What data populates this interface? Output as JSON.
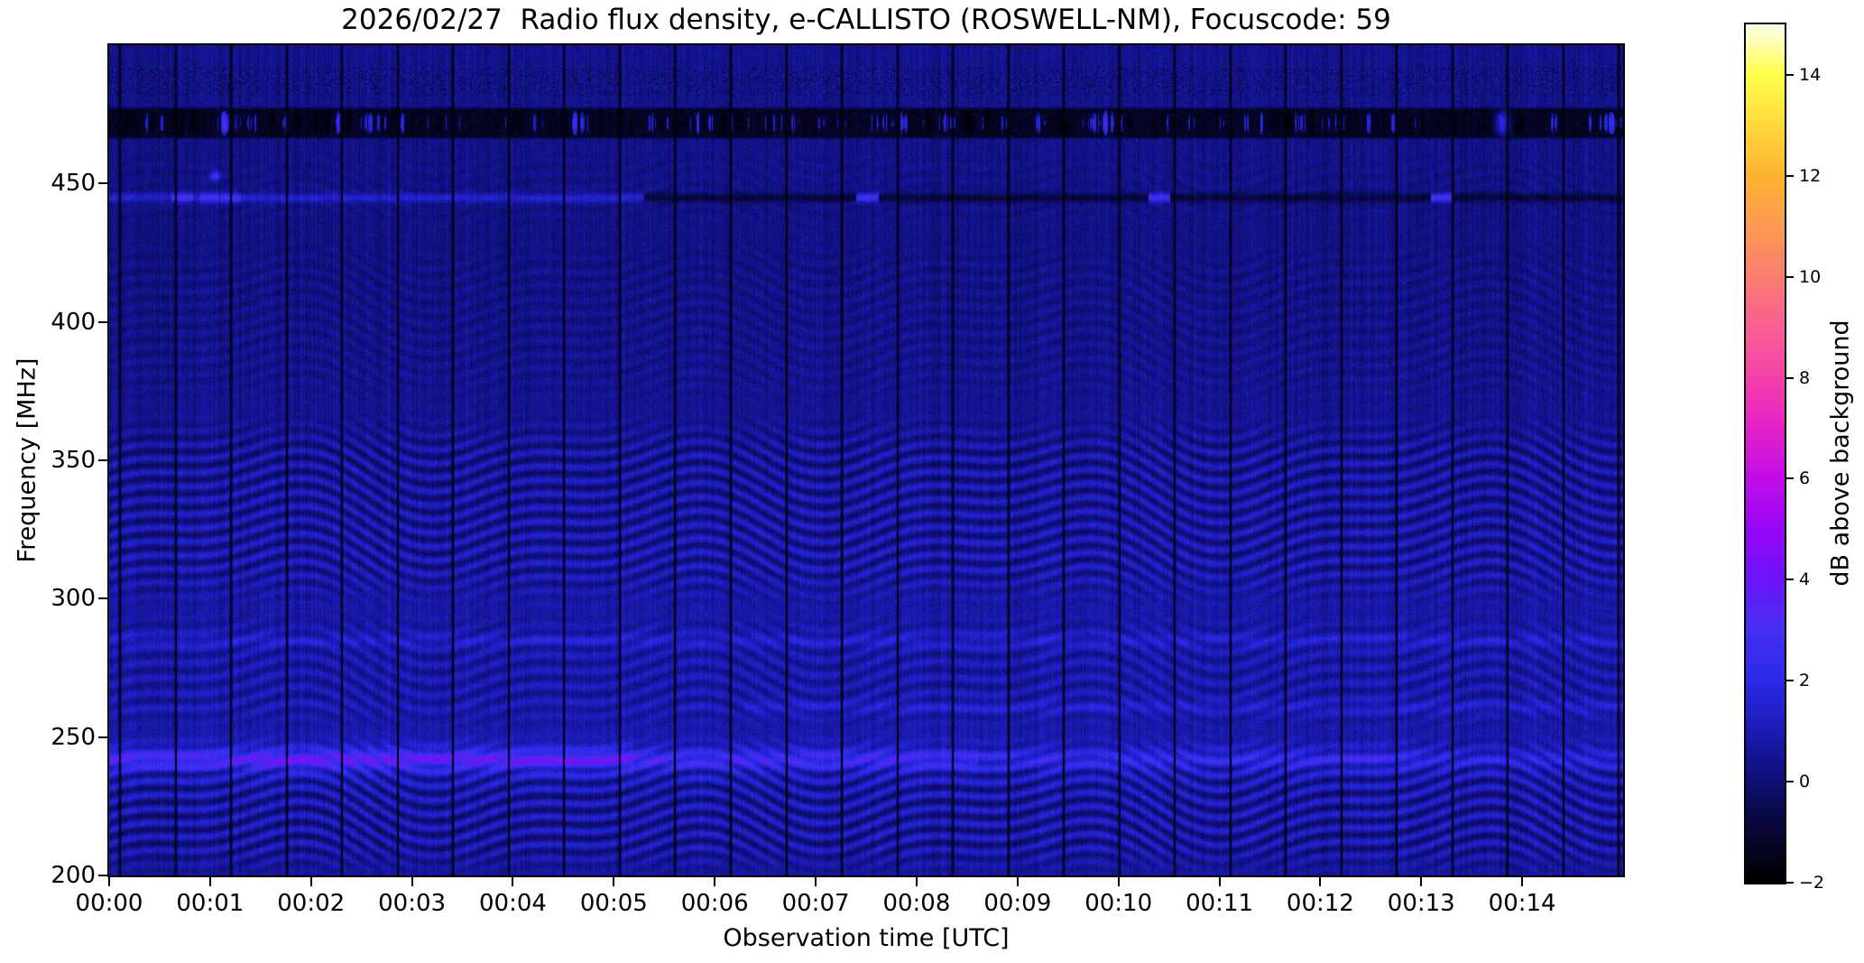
{
  "chart_data": {
    "type": "heatmap",
    "title": "2026/02/27  Radio flux density, e-CALLISTO (ROSWELL-NM), Focuscode: 59",
    "xlabel": "Observation time [UTC]",
    "ylabel": "Frequency [MHz]",
    "x_range_minutes": [
      0,
      15
    ],
    "y_range_mhz": [
      200,
      500
    ],
    "x_ticks": [
      {
        "minute": 0,
        "label": "00:00"
      },
      {
        "minute": 1,
        "label": "00:01"
      },
      {
        "minute": 2,
        "label": "00:02"
      },
      {
        "minute": 3,
        "label": "00:03"
      },
      {
        "minute": 4,
        "label": "00:04"
      },
      {
        "minute": 5,
        "label": "00:05"
      },
      {
        "minute": 6,
        "label": "00:06"
      },
      {
        "minute": 7,
        "label": "00:07"
      },
      {
        "minute": 8,
        "label": "00:08"
      },
      {
        "minute": 9,
        "label": "00:09"
      },
      {
        "minute": 10,
        "label": "00:10"
      },
      {
        "minute": 11,
        "label": "00:11"
      },
      {
        "minute": 12,
        "label": "00:12"
      },
      {
        "minute": 13,
        "label": "00:13"
      },
      {
        "minute": 14,
        "label": "00:14"
      }
    ],
    "y_ticks_mhz": [
      450,
      400,
      350,
      300,
      250,
      200
    ],
    "colorbar": {
      "label": "dB above background",
      "range_db": [
        -2,
        15
      ],
      "colormap": "gnuplot2",
      "ticks": [
        {
          "db": 14,
          "label": "14"
        },
        {
          "db": 12,
          "label": "12"
        },
        {
          "db": 10,
          "label": "10"
        },
        {
          "db": 8,
          "label": "8"
        },
        {
          "db": 6,
          "label": "6"
        },
        {
          "db": 4,
          "label": "4"
        },
        {
          "db": 2,
          "label": "2"
        },
        {
          "db": 0,
          "label": "0"
        },
        {
          "db": -2,
          "label": "−2"
        }
      ],
      "stops": [
        {
          "db": 15,
          "color": "#fffceb"
        },
        {
          "db": 14,
          "color": "#ffff4a"
        },
        {
          "db": 13,
          "color": "#ffd83c"
        },
        {
          "db": 12,
          "color": "#fcb232"
        },
        {
          "db": 11,
          "color": "#fb9a52"
        },
        {
          "db": 10,
          "color": "#fa7e6e"
        },
        {
          "db": 9,
          "color": "#f85f94"
        },
        {
          "db": 8,
          "color": "#f440a8"
        },
        {
          "db": 7,
          "color": "#e122c8"
        },
        {
          "db": 6,
          "color": "#c20ce8"
        },
        {
          "db": 5,
          "color": "#9706f6"
        },
        {
          "db": 4,
          "color": "#6c14fa"
        },
        {
          "db": 3,
          "color": "#4530f2"
        },
        {
          "db": 2,
          "color": "#2a2ae8"
        },
        {
          "db": 1,
          "color": "#1b1bb4"
        },
        {
          "db": 0,
          "color": "#0e0e72"
        },
        {
          "db": -1,
          "color": "#070733"
        },
        {
          "db": -2,
          "color": "#000000"
        }
      ]
    },
    "features": [
      {
        "type": "noise_floor",
        "mean_db": 0.45,
        "noise_db": 0.62
      },
      {
        "type": "time_gaps",
        "first_s": 6,
        "period_s": 33
      },
      {
        "type": "speckle_band",
        "f_mhz": [
          482,
          492
        ]
      },
      {
        "type": "rfi_band",
        "f_mhz": [
          466,
          478
        ],
        "bright_spot_min": 13.8,
        "bright_spot_db": 3.5
      },
      {
        "type": "carrier_line",
        "f_mhz": 445,
        "bright_until_min": 5.3,
        "bright_db": 1.25,
        "dark_db": 1.25,
        "knot_db": 1.6,
        "knots_min": [
          [
            0.62,
            0.82
          ],
          [
            0.9,
            1.08
          ],
          [
            1.1,
            1.3
          ],
          [
            7.4,
            7.62
          ],
          [
            10.3,
            10.5
          ],
          [
            13.1,
            13.3
          ]
        ]
      },
      {
        "type": "spot",
        "min": 1.05,
        "f_mhz": 453,
        "peak_db": 2.6
      },
      {
        "type": "bright_band",
        "f_mhz": 242,
        "peak_db": 1.6
      },
      {
        "type": "faint_line",
        "f_mhz": 285,
        "peak_db": 0.65,
        "side": "full"
      },
      {
        "type": "faint_line",
        "f_mhz": 261,
        "peak_db": 0.6,
        "side": "right"
      },
      {
        "type": "fringes",
        "f_mhz": [
          432,
          463
        ],
        "amp_db": 0.08,
        "f_period_mhz": 5,
        "phase": 1.0
      },
      {
        "type": "fringes",
        "f_mhz": [
          368,
          432
        ],
        "amp_db": 0.16,
        "f_period_mhz": 5,
        "phase": 0.5
      },
      {
        "type": "fringes",
        "f_mhz": [
          296,
          368
        ],
        "amp_db": 0.5,
        "f_period_mhz": 5,
        "phase": 0.0
      },
      {
        "type": "fringes",
        "f_mhz": [
          252,
          296
        ],
        "amp_db": 0.32,
        "f_period_mhz": 5.5,
        "phase": 2.1
      },
      {
        "type": "fringes",
        "f_mhz": [
          200,
          252
        ],
        "amp_db": 0.55,
        "f_period_mhz": 5,
        "phase": 4.2
      }
    ]
  }
}
